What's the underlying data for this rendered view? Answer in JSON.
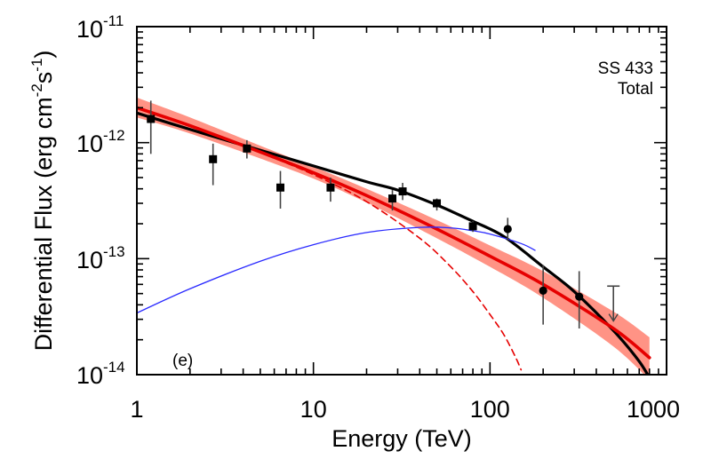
{
  "chart_data": {
    "type": "line",
    "scale": {
      "x": "log",
      "y": "log"
    },
    "xlim": [
      1,
      1000
    ],
    "ylim": [
      1e-14,
      1e-11
    ],
    "xlabel": "Energy (TeV)",
    "ylabel": {
      "main": "Differential Flux (erg cm",
      "sup1": "-2",
      "mid": "s",
      "sup2": "-1",
      "end": ")"
    },
    "x_tick_labels": [
      "1",
      "10",
      "100",
      "1000"
    ],
    "x_tick_values": [
      1,
      10,
      100,
      1000
    ],
    "y_ticks": [
      {
        "value": 1e-11,
        "base": "10",
        "exp": "-11"
      },
      {
        "value": 1e-12,
        "base": "10",
        "exp": "-12"
      },
      {
        "value": 1e-13,
        "base": "10",
        "exp": "-13"
      },
      {
        "value": 1e-14,
        "base": "10",
        "exp": "-14"
      }
    ],
    "annotations": {
      "source": "SS 433",
      "component": "Total",
      "panel": "(e)"
    },
    "series": [
      {
        "name": "Total model",
        "color": "#000000",
        "x": [
          1,
          2,
          4,
          7,
          10,
          20,
          30,
          50,
          80,
          120,
          200,
          300,
          500,
          700,
          850
        ],
        "y": [
          1.8e-12,
          1.3e-12,
          9.5e-13,
          7.4e-13,
          6.3e-13,
          4.6e-13,
          3.9e-13,
          2.9e-13,
          2.1e-13,
          1.55e-13,
          8.5e-14,
          5.2e-14,
          2.4e-14,
          1.3e-14,
          8e-15
        ]
      },
      {
        "name": "Component (power law)",
        "color": "#e60000",
        "x": [
          1,
          2,
          5,
          10,
          20,
          50,
          100,
          200,
          500,
          800
        ],
        "y": [
          2e-12,
          1.4e-12,
          8.3e-13,
          5.5e-13,
          3.5e-13,
          1.8e-13,
          1.05e-13,
          6e-14,
          2.5e-14,
          1.4e-14
        ]
      },
      {
        "name": "Component (cutoff, dashed)",
        "color": "#e60000",
        "dashed": true,
        "x": [
          1,
          2,
          5,
          10,
          20,
          40,
          60,
          80,
          100,
          120,
          140,
          150
        ],
        "y": [
          2e-12,
          1.4e-12,
          8.2e-13,
          5.3e-13,
          3.1e-13,
          1.5e-13,
          8.5e-14,
          5.2e-14,
          3.3e-14,
          2.2e-14,
          1.4e-14,
          1.1e-14
        ]
      },
      {
        "name": "Component (hadronic, blue)",
        "color": "#2a2aff",
        "x": [
          1,
          2,
          5,
          10,
          20,
          40,
          60,
          80,
          100,
          150,
          180
        ],
        "y": [
          3.4e-14,
          5.5e-14,
          9.5e-14,
          1.32e-13,
          1.68e-13,
          1.86e-13,
          1.84e-13,
          1.74e-13,
          1.63e-13,
          1.35e-13,
          1.18e-13
        ]
      }
    ],
    "band": {
      "name": "Uncertainty band",
      "color": "#ff8070",
      "x": [
        1,
        2,
        5,
        10,
        20,
        50,
        100,
        200,
        500,
        800
      ],
      "y_low": [
        1.65e-12,
        1.2e-12,
        7.3e-13,
        4.9e-13,
        3.05e-13,
        1.5e-13,
        8.5e-14,
        4.6e-14,
        1.75e-14,
        9e-15
      ],
      "y_high": [
        2.45e-12,
        1.65e-12,
        9.4e-13,
        6.2e-13,
        4e-13,
        2.15e-13,
        1.3e-13,
        7.8e-14,
        3.5e-14,
        2.1e-14
      ]
    },
    "data_points": {
      "squares": [
        {
          "x": 1.2,
          "y": 1.6e-12,
          "lo": 8e-13,
          "hi": 2.3e-12
        },
        {
          "x": 2.7,
          "y": 7.2e-13,
          "lo": 4.3e-13,
          "hi": 9.8e-13
        },
        {
          "x": 4.2,
          "y": 8.9e-13,
          "lo": 7.3e-13,
          "hi": 1.05e-12
        },
        {
          "x": 6.5,
          "y": 4.1e-13,
          "lo": 2.7e-13,
          "hi": 5.7e-13
        },
        {
          "x": 12.5,
          "y": 4.1e-13,
          "lo": 3.1e-13,
          "hi": 5e-13
        },
        {
          "x": 28,
          "y": 3.3e-13,
          "lo": 2.6e-13,
          "hi": 3.9e-13
        },
        {
          "x": 32,
          "y": 3.8e-13,
          "lo": 3.2e-13,
          "hi": 4.5e-13
        },
        {
          "x": 50,
          "y": 3e-13,
          "lo": 2.6e-13,
          "hi": 3.3e-13
        },
        {
          "x": 80,
          "y": 1.9e-13,
          "lo": 1.7e-13,
          "hi": 2.1e-13
        }
      ],
      "circles": [
        {
          "x": 126,
          "y": 1.8e-13,
          "lo": 1.45e-13,
          "hi": 2.25e-13
        },
        {
          "x": 200,
          "y": 5.3e-14,
          "lo": 2.7e-14,
          "hi": 8.8e-14
        },
        {
          "x": 320,
          "y": 4.7e-14,
          "lo": 2.5e-14,
          "hi": 7.8e-14
        }
      ],
      "upper_limits": [
        {
          "x": 500,
          "y": 5.8e-14,
          "lo": 2.9e-14
        }
      ]
    }
  }
}
